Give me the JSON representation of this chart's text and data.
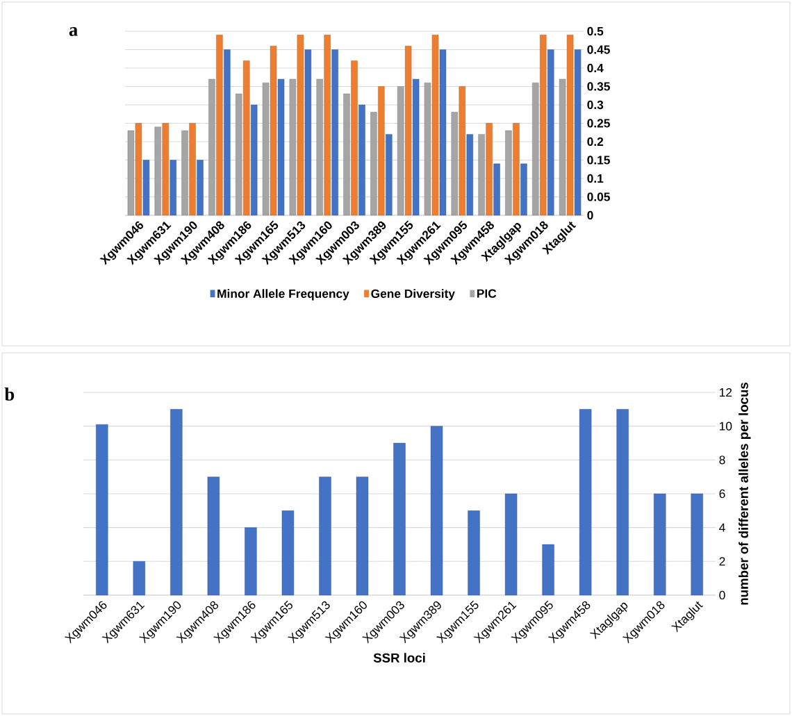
{
  "chart_data": [
    {
      "type": "bar",
      "annotations": [
        "a"
      ],
      "categories": [
        "Xgwm046",
        "Xgwm631",
        "Xgwm190",
        "Xgwm408",
        "Xgwm186",
        "Xgwm165",
        "Xgwm513",
        "Xgwm160",
        "Xgwm003",
        "Xgwm389",
        "Xgwm155",
        "Xgwm261",
        "Xgwm095",
        "Xgwm458",
        "Xtaglgap",
        "Xgwm018",
        "Xtaglut"
      ],
      "series": [
        {
          "name": "Minor Allele Frequency",
          "color": "#4472c4",
          "values": [
            0.15,
            0.15,
            0.15,
            0.45,
            0.3,
            0.37,
            0.45,
            0.45,
            0.3,
            0.22,
            0.37,
            0.45,
            0.22,
            0.14,
            0.14,
            0.45,
            0.45
          ]
        },
        {
          "name": "Gene Diversity",
          "color": "#ed7d31",
          "values": [
            0.25,
            0.25,
            0.25,
            0.49,
            0.42,
            0.46,
            0.49,
            0.49,
            0.42,
            0.35,
            0.46,
            0.49,
            0.35,
            0.25,
            0.25,
            0.49,
            0.49
          ]
        },
        {
          "name": "PIC",
          "color": "#a5a5a5",
          "values": [
            0.23,
            0.24,
            0.23,
            0.37,
            0.33,
            0.36,
            0.37,
            0.37,
            0.33,
            0.28,
            0.35,
            0.36,
            0.28,
            0.22,
            0.23,
            0.36,
            0.37
          ]
        }
      ],
      "ylim": [
        0,
        0.5
      ],
      "yticks": [
        0,
        0.05,
        0.1,
        0.15,
        0.2,
        0.25,
        0.3,
        0.35,
        0.4,
        0.45,
        0.5
      ],
      "grid": "y",
      "legend": "bottom"
    },
    {
      "type": "bar",
      "annotations": [
        "b"
      ],
      "xlabel": "SSR loci",
      "ylabel": "number of different alleles per locus",
      "categories": [
        "Xgwm046",
        "Xgwm631",
        "Xgwm190",
        "Xgwm408",
        "Xgwm186",
        "Xgwm165",
        "Xgwm513",
        "Xgwm160",
        "Xgwm003",
        "Xgwm389",
        "Xgwm155",
        "Xgwm261",
        "Xgwm095",
        "Xgwm458",
        "Xtaglgap",
        "Xgwm018",
        "Xtaglut"
      ],
      "values": [
        10.1,
        2,
        11,
        7,
        4,
        5,
        7,
        7,
        9,
        10,
        5,
        6,
        3,
        11,
        11,
        6,
        6
      ],
      "color": "#4472c4",
      "ylim": [
        0,
        12
      ],
      "yticks": [
        0,
        2,
        4,
        6,
        8,
        10,
        12
      ],
      "grid": "y"
    }
  ]
}
